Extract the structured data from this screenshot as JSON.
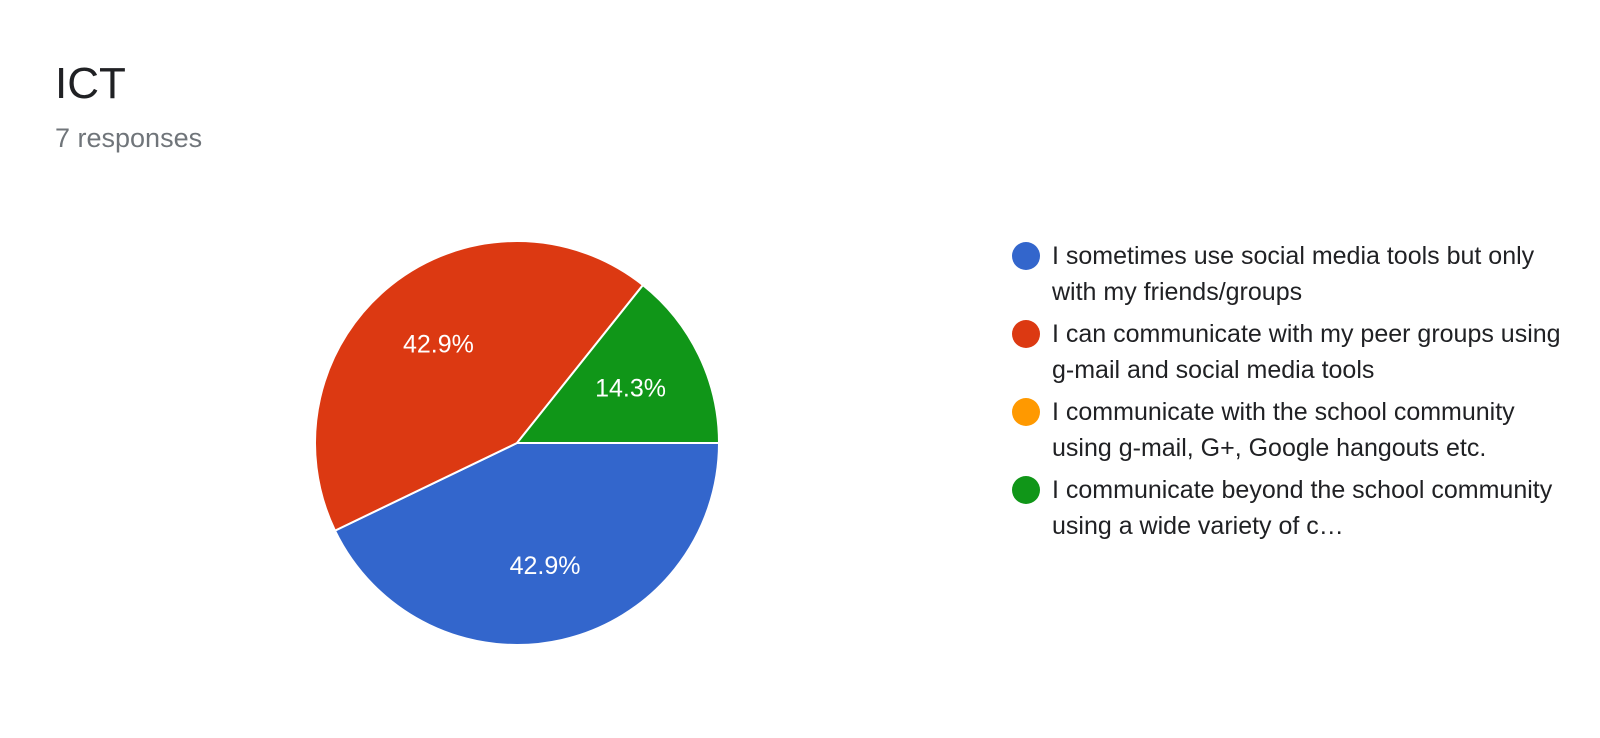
{
  "header": {
    "title": "ICT",
    "subtitle": "7 responses"
  },
  "chart_data": {
    "type": "pie",
    "title": "ICT",
    "total_responses": 7,
    "slices": [
      {
        "label": "I sometimes use social media tools but only with my friends/groups",
        "value": 42.9,
        "display": "42.9%",
        "color": "#3366cc"
      },
      {
        "label": "I can communicate with my peer groups using g-mail and social media tools",
        "value": 42.9,
        "display": "42.9%",
        "color": "#dc3912"
      },
      {
        "label": "I communicate with the school community using g-mail, G+, Google hangouts etc.",
        "value": 0,
        "display": "",
        "color": "#ff9900"
      },
      {
        "label": "I communicate beyond the school community using a wide variety of c…",
        "value": 14.3,
        "display": "14.3%",
        "color": "#109618"
      }
    ],
    "legend_position": "right"
  }
}
